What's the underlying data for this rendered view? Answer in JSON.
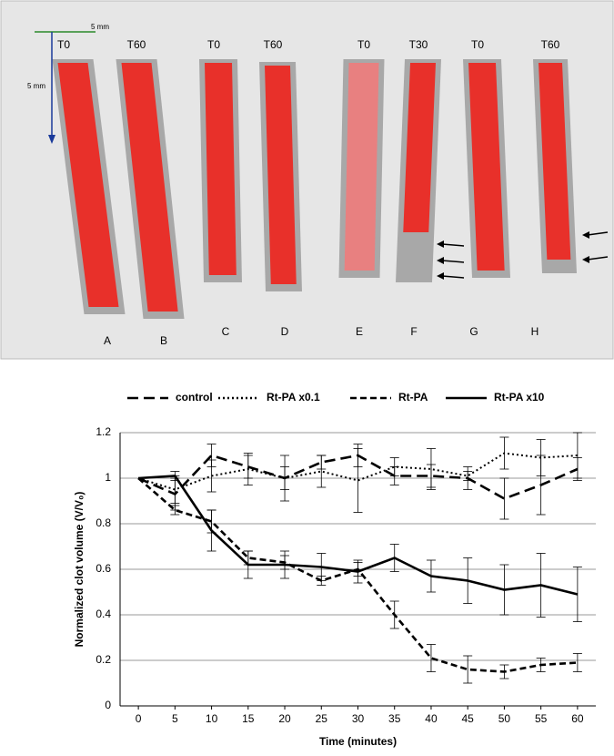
{
  "image_panel": {
    "scale_labels": [
      "5 mm",
      "5 mm"
    ],
    "time_labels": [
      "T0",
      "T60",
      "T0",
      "T60",
      "T0",
      "T30",
      "T0",
      "T60"
    ],
    "panel_labels": [
      "A",
      "B",
      "C",
      "D",
      "E",
      "F",
      "G",
      "H"
    ]
  },
  "chart_data": {
    "type": "line",
    "x_label": "Time (minutes)",
    "y_label": "Normalized clot volume (V/V₀)",
    "x": [
      0,
      5,
      10,
      15,
      20,
      25,
      30,
      35,
      40,
      45,
      50,
      55,
      60
    ],
    "series": [
      {
        "name": "control",
        "color": "#000000",
        "linestyle": "dashed",
        "values": [
          1,
          0.93,
          1.1,
          1.05,
          1.0,
          1.07,
          1.1,
          1.01,
          1.01,
          1.0,
          0.91,
          0.97,
          1.04
        ],
        "errors": [
          0,
          0.07,
          0.05,
          0.05,
          0.05,
          0.03,
          0.05,
          0.04,
          0.05,
          0.05,
          0.09,
          0.13,
          0.05
        ]
      },
      {
        "name": "Rt-PA x0.1",
        "color": "#000000",
        "linestyle": "dotted",
        "values": [
          1,
          0.95,
          1.01,
          1.04,
          1.0,
          1.03,
          0.99,
          1.05,
          1.04,
          1.01,
          1.11,
          1.09,
          1.1
        ],
        "errors": [
          0,
          0.06,
          0.07,
          0.07,
          0.1,
          0.07,
          0.14,
          0.04,
          0.09,
          0.02,
          0.07,
          0.08,
          0.1
        ]
      },
      {
        "name": "Rt-PA",
        "color": "#000000",
        "linestyle": "short-dashed",
        "values": [
          1,
          0.86,
          0.81,
          0.65,
          0.63,
          0.55,
          0.6,
          0.4,
          0.21,
          0.16,
          0.15,
          0.18,
          0.19
        ],
        "errors": [
          0,
          0.02,
          0.05,
          0.03,
          0.03,
          0.02,
          0.03,
          0.06,
          0.06,
          0.06,
          0.03,
          0.03,
          0.04
        ]
      },
      {
        "name": "Rt-PA x10",
        "color": "#000000",
        "linestyle": "solid",
        "values": [
          1,
          1.01,
          0.77,
          0.62,
          0.62,
          0.61,
          0.59,
          0.65,
          0.57,
          0.55,
          0.51,
          0.53,
          0.49
        ],
        "errors": [
          0,
          0.02,
          0.09,
          0.06,
          0.06,
          0.06,
          0.05,
          0.06,
          0.07,
          0.1,
          0.11,
          0.14,
          0.12
        ]
      }
    ],
    "xlim": [
      -2.5,
      62.5
    ],
    "xticks": [
      0,
      5,
      10,
      15,
      20,
      25,
      30,
      35,
      40,
      45,
      50,
      55,
      60
    ],
    "ylim": [
      0,
      1.2
    ],
    "yticks": [
      0,
      0.2,
      0.4,
      0.6,
      0.8,
      1,
      1.2
    ],
    "grid": true,
    "legend": "top"
  }
}
